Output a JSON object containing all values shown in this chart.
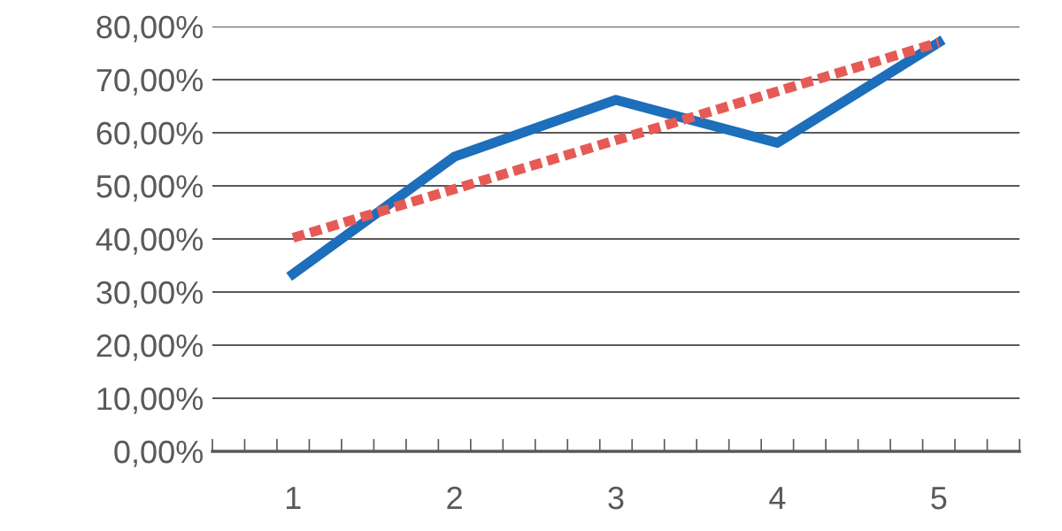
{
  "chart_data": {
    "type": "line",
    "categories": [
      "1",
      "2",
      "3",
      "4",
      "5"
    ],
    "series": [
      {
        "color": "#1d6ebb",
        "line_style": "solid",
        "values": [
          33.4,
          55.5,
          66.2,
          58.1,
          77
        ]
      },
      {
        "color": "#e65a55",
        "line_style": "dotted",
        "values": [
          40.2,
          49.4,
          58.6,
          67.8,
          77
        ]
      }
    ],
    "ylim": [
      0,
      80
    ],
    "yticks": [
      {
        "value": 0,
        "label": "0,00%"
      },
      {
        "value": 10,
        "label": "10,00%"
      },
      {
        "value": 20,
        "label": "20,00%"
      },
      {
        "value": 30,
        "label": "30,00%"
      },
      {
        "value": 40,
        "label": "40,00%"
      },
      {
        "value": 50,
        "label": "50,00%"
      },
      {
        "value": 60,
        "label": "60,00%"
      },
      {
        "value": 70,
        "label": "70,00%"
      },
      {
        "value": 80,
        "label": "80,00%"
      }
    ],
    "grid": "y",
    "marker": "none",
    "legend": false
  }
}
